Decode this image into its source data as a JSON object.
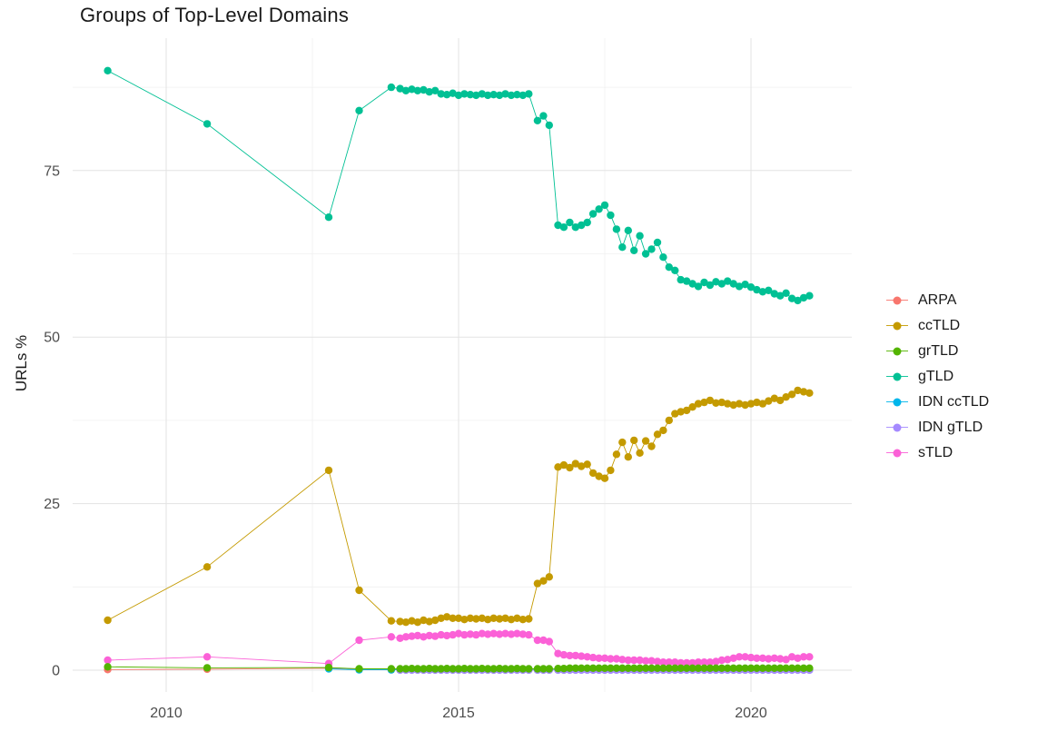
{
  "chart_data": {
    "type": "scatter",
    "title": "Groups of Top-Level Domains",
    "xlabel": "",
    "ylabel": "URLs %",
    "x_ticks": [
      2010,
      2015,
      2020
    ],
    "y_ticks": [
      0,
      25,
      50,
      75
    ],
    "x_minor": [
      2012.5,
      2017.5
    ],
    "y_minor": [
      12.5,
      37.5,
      62.5,
      87.5
    ],
    "xlim": [
      2008.4,
      2021.7
    ],
    "ylim": [
      0,
      93
    ],
    "grid": "on",
    "legend_position": "right",
    "x": [
      2009.0,
      2010.7,
      2012.78,
      2013.3,
      2013.85,
      2014.0,
      2014.1,
      2014.2,
      2014.3,
      2014.4,
      2014.5,
      2014.6,
      2014.7,
      2014.8,
      2014.9,
      2015.0,
      2015.1,
      2015.2,
      2015.3,
      2015.4,
      2015.5,
      2015.6,
      2015.7,
      2015.8,
      2015.9,
      2016.0,
      2016.1,
      2016.2,
      2016.35,
      2016.45,
      2016.55,
      2016.7,
      2016.8,
      2016.9,
      2017.0,
      2017.1,
      2017.2,
      2017.3,
      2017.4,
      2017.5,
      2017.6,
      2017.7,
      2017.8,
      2017.9,
      2018.0,
      2018.1,
      2018.2,
      2018.3,
      2018.4,
      2018.5,
      2018.6,
      2018.7,
      2018.8,
      2018.9,
      2019.0,
      2019.1,
      2019.2,
      2019.3,
      2019.4,
      2019.5,
      2019.6,
      2019.7,
      2019.8,
      2019.9,
      2020.0,
      2020.1,
      2020.2,
      2020.3,
      2020.4,
      2020.5,
      2020.6,
      2020.7,
      2020.8,
      2020.9,
      2021.0
    ],
    "series": [
      {
        "name": "ARPA",
        "color": "#F8766D",
        "values": [
          0.1,
          0.15,
          0.3,
          0.1,
          0.05,
          0.05,
          0.05,
          0.05,
          0.05,
          0.05,
          0.05,
          0.05,
          0.05,
          0.05,
          0.05,
          0.05,
          0.05,
          0.05,
          0.05,
          0.05,
          0.05,
          0.05,
          0.05,
          0.05,
          0.05,
          0.05,
          0.05,
          0.05,
          0.05,
          0.05,
          0.05,
          0.05,
          0.05,
          0.05,
          0.05,
          0.05,
          0.05,
          0.05,
          0.05,
          0.05,
          0.05,
          0.05,
          0.05,
          0.05,
          0.05,
          0.05,
          0.05,
          0.05,
          0.05,
          0.05,
          0.05,
          0.05,
          0.05,
          0.05,
          0.05,
          0.05,
          0.05,
          0.05,
          0.05,
          0.05,
          0.05,
          0.05,
          0.05,
          0.05,
          0.05,
          0.05,
          0.05,
          0.05,
          0.05,
          0.05,
          0.05,
          0.05,
          0.05,
          0.05,
          0.05
        ]
      },
      {
        "name": "ccTLD",
        "color": "#C49A00",
        "values": [
          7.5,
          15.5,
          30,
          12,
          7.4,
          7.3,
          7.2,
          7.4,
          7.2,
          7.5,
          7.3,
          7.5,
          7.8,
          8,
          7.8,
          7.8,
          7.6,
          7.8,
          7.7,
          7.8,
          7.6,
          7.8,
          7.7,
          7.8,
          7.6,
          7.8,
          7.6,
          7.7,
          13,
          13.4,
          14,
          30.5,
          30.8,
          30.4,
          31,
          30.6,
          30.9,
          29.6,
          29.1,
          28.8,
          30,
          32.4,
          34.2,
          32,
          34.5,
          32.6,
          34.4,
          33.6,
          35.4,
          36,
          37.5,
          38.5,
          38.8,
          39,
          39.5,
          40,
          40.2,
          40.5,
          40.1,
          40.2,
          40,
          39.8,
          40,
          39.8,
          40,
          40.2,
          40,
          40.4,
          40.8,
          40.5,
          41,
          41.4,
          42,
          41.8,
          41.6
        ]
      },
      {
        "name": "grTLD",
        "color": "#53B400",
        "values": [
          0.5,
          0.35,
          0.4,
          0.2,
          0.2,
          0.2,
          0.2,
          0.25,
          0.2,
          0.2,
          0.25,
          0.2,
          0.2,
          0.25,
          0.2,
          0.2,
          0.25,
          0.2,
          0.2,
          0.25,
          0.2,
          0.2,
          0.25,
          0.2,
          0.2,
          0.25,
          0.2,
          0.2,
          0.2,
          0.2,
          0.2,
          0.25,
          0.25,
          0.3,
          0.3,
          0.3,
          0.3,
          0.3,
          0.3,
          0.3,
          0.3,
          0.3,
          0.3,
          0.3,
          0.3,
          0.3,
          0.3,
          0.3,
          0.3,
          0.3,
          0.3,
          0.3,
          0.3,
          0.3,
          0.3,
          0.3,
          0.3,
          0.3,
          0.3,
          0.3,
          0.3,
          0.3,
          0.3,
          0.3,
          0.3,
          0.3,
          0.3,
          0.3,
          0.3,
          0.3,
          0.3,
          0.3,
          0.3,
          0.3,
          0.3
        ]
      },
      {
        "name": "gTLD",
        "color": "#00C094",
        "values": [
          90,
          82,
          68,
          84,
          87.5,
          87.3,
          87,
          87.2,
          87,
          87.1,
          86.8,
          87,
          86.5,
          86.4,
          86.6,
          86.3,
          86.5,
          86.4,
          86.3,
          86.5,
          86.3,
          86.4,
          86.3,
          86.5,
          86.3,
          86.4,
          86.3,
          86.5,
          82.5,
          83.2,
          81.8,
          66.8,
          66.5,
          67.2,
          66.5,
          66.8,
          67.2,
          68.5,
          69.2,
          69.8,
          68.3,
          66.2,
          63.5,
          66,
          63,
          65.2,
          62.5,
          63.2,
          64.2,
          62,
          60.5,
          60,
          58.6,
          58.4,
          58,
          57.6,
          58.2,
          57.8,
          58.3,
          58,
          58.4,
          58,
          57.6,
          57.9,
          57.5,
          57.1,
          56.8,
          57,
          56.5,
          56.2,
          56.6,
          55.8,
          55.5,
          55.9,
          56.2
        ]
      },
      {
        "name": "IDN ccTLD",
        "color": "#00B6EB",
        "values": [
          null,
          null,
          0.2,
          0.05,
          0.05,
          0.05,
          0.05,
          0.05,
          0.05,
          0.05,
          0.05,
          0.05,
          0.05,
          0.05,
          0.05,
          0.05,
          0.05,
          0.05,
          0.05,
          0.05,
          0.05,
          0.05,
          0.05,
          0.05,
          0.05,
          0.05,
          0.05,
          0.05,
          0.05,
          0.05,
          0.05,
          0.05,
          0.05,
          0.05,
          0.05,
          0.05,
          0.05,
          0.05,
          0.05,
          0.05,
          0.05,
          0.05,
          0.05,
          0.05,
          0.05,
          0.05,
          0.05,
          0.05,
          0.05,
          0.05,
          0.05,
          0.05,
          0.05,
          0.05,
          0.05,
          0.05,
          0.05,
          0.05,
          0.05,
          0.05,
          0.05,
          0.05,
          0.05,
          0.05,
          0.05,
          0.05,
          0.05,
          0.05,
          0.05,
          0.05,
          0.05,
          0.05,
          0.05,
          0.05,
          0.05
        ]
      },
      {
        "name": "IDN gTLD",
        "color": "#A58AFF",
        "values": [
          null,
          null,
          null,
          null,
          null,
          0.02,
          0.02,
          0.02,
          0.02,
          0.02,
          0.02,
          0.02,
          0.02,
          0.02,
          0.02,
          0.02,
          0.02,
          0.02,
          0.02,
          0.02,
          0.02,
          0.02,
          0.02,
          0.02,
          0.02,
          0.02,
          0.02,
          0.02,
          0.02,
          0.02,
          0.02,
          0.02,
          0.02,
          0.02,
          0.02,
          0.02,
          0.02,
          0.02,
          0.02,
          0.02,
          0.02,
          0.02,
          0.02,
          0.02,
          0.02,
          0.02,
          0.02,
          0.02,
          0.02,
          0.02,
          0.02,
          0.02,
          0.02,
          0.02,
          0.02,
          0.02,
          0.02,
          0.02,
          0.02,
          0.02,
          0.02,
          0.02,
          0.02,
          0.02,
          0.02,
          0.02,
          0.02,
          0.02,
          0.02,
          0.02,
          0.02,
          0.02,
          0.02,
          0.02,
          0.02
        ]
      },
      {
        "name": "sTLD",
        "color": "#FB61D7",
        "values": [
          1.5,
          2,
          1,
          4.5,
          5,
          4.8,
          5,
          5.1,
          5.2,
          5,
          5.2,
          5.1,
          5.3,
          5.2,
          5.3,
          5.5,
          5.3,
          5.4,
          5.3,
          5.5,
          5.4,
          5.5,
          5.4,
          5.5,
          5.4,
          5.5,
          5.4,
          5.3,
          4.5,
          4.5,
          4.3,
          2.5,
          2.3,
          2.2,
          2.2,
          2.1,
          2,
          1.9,
          1.8,
          1.8,
          1.7,
          1.7,
          1.6,
          1.5,
          1.5,
          1.5,
          1.4,
          1.4,
          1.3,
          1.2,
          1.2,
          1.2,
          1.1,
          1.1,
          1.1,
          1.2,
          1.2,
          1.2,
          1.3,
          1.5,
          1.6,
          1.8,
          2,
          2,
          1.9,
          1.8,
          1.8,
          1.7,
          1.8,
          1.7,
          1.6,
          2,
          1.8,
          2,
          2
        ]
      }
    ]
  }
}
